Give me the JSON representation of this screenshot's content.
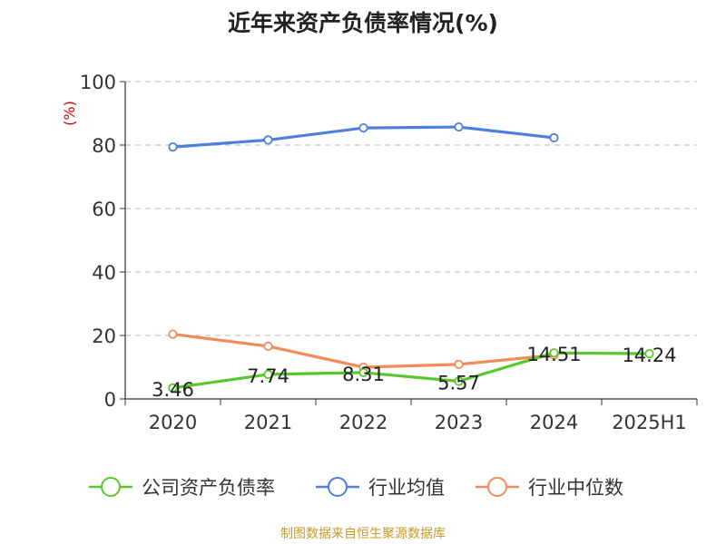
{
  "chart_title": "近年来资产负债率情况(%)",
  "source_note": "制图数据来自恒生聚源数据库",
  "chart_data": {
    "type": "line",
    "title": "近年来资产负债率情况(%)",
    "ylabel": "(%)",
    "xlabel": "",
    "categories": [
      "2020",
      "2021",
      "2022",
      "2023",
      "2024",
      "2025H1"
    ],
    "ylim": [
      0,
      100
    ],
    "yticks": [
      0,
      20,
      40,
      60,
      80,
      100
    ],
    "grid": "horizontal-dashed",
    "legend_position": "bottom",
    "series": [
      {
        "name": "公司资产负债率",
        "color": "#5ac72d",
        "values": [
          3.46,
          7.74,
          8.31,
          5.57,
          14.51,
          14.24
        ],
        "labels": [
          "3.46",
          "7.74",
          "8.31",
          "5.57",
          "14.51",
          "14.24"
        ]
      },
      {
        "name": "行业均值",
        "color": "#4e7fdc",
        "values": [
          79.4,
          81.6,
          85.4,
          85.7,
          82.3,
          null
        ]
      },
      {
        "name": "行业中位数",
        "color": "#f28c59",
        "values": [
          20.4,
          16.6,
          10.0,
          10.9,
          13.8,
          null
        ]
      }
    ]
  }
}
